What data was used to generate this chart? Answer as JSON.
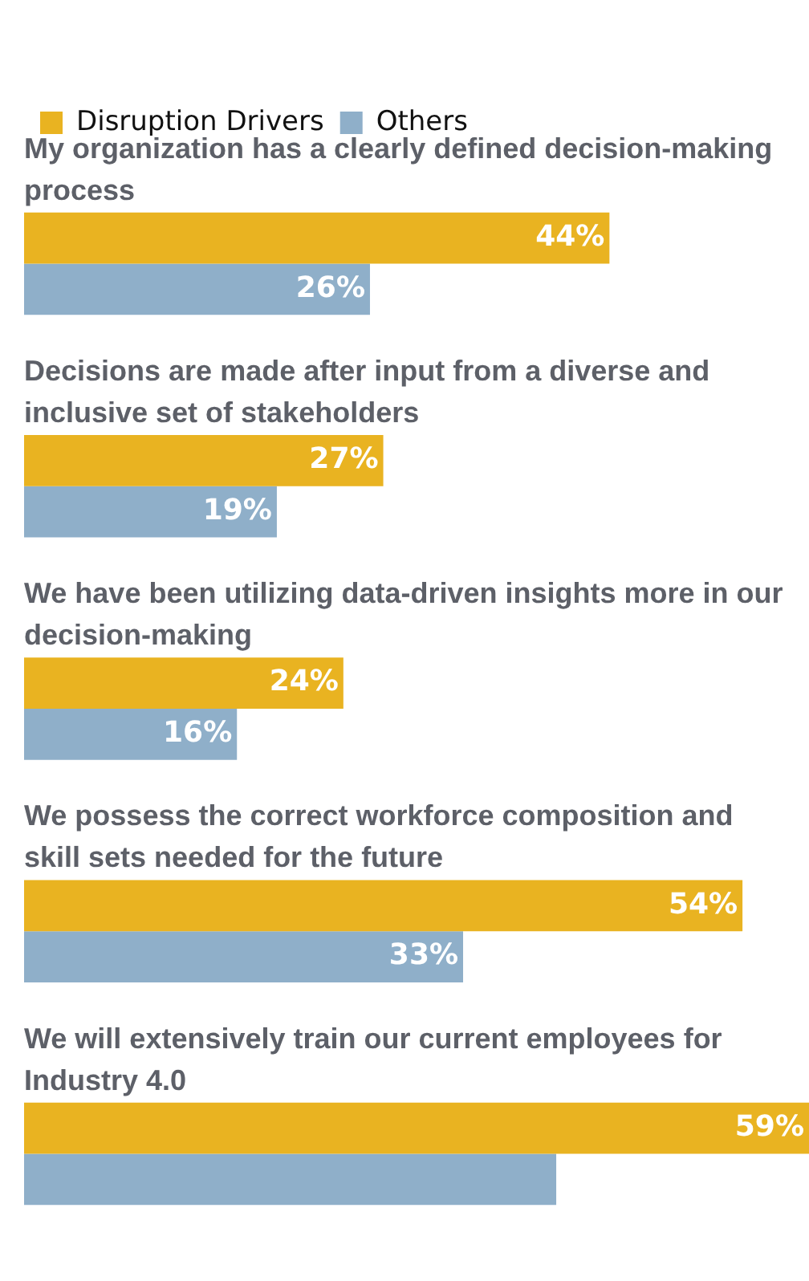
{
  "chart_data": {
    "type": "bar",
    "orientation": "horizontal",
    "legend": "top left",
    "categories": [
      "My organization has a clearly defined decision-making process",
      "Decisions are made after input from a diverse and inclusive set of stakeholders",
      "We have been utilizing data-driven insights more in our decision-making",
      "We possess the correct workforce composition and skill sets needed for the future",
      "We will extensively train our current employees for Industry 4.0"
    ],
    "series": [
      {
        "name": "Disruption Drivers",
        "color": "#e9b321",
        "values": [
          44,
          27,
          24,
          54,
          59
        ],
        "value_labels": [
          "44%",
          "27%",
          "24%",
          "54%",
          "59%"
        ]
      },
      {
        "name": "Others",
        "color": "#8fafc9",
        "values": [
          26,
          19,
          16,
          33,
          40
        ],
        "value_labels": [
          "26%",
          "19%",
          "16%",
          "33%",
          null
        ]
      }
    ]
  }
}
